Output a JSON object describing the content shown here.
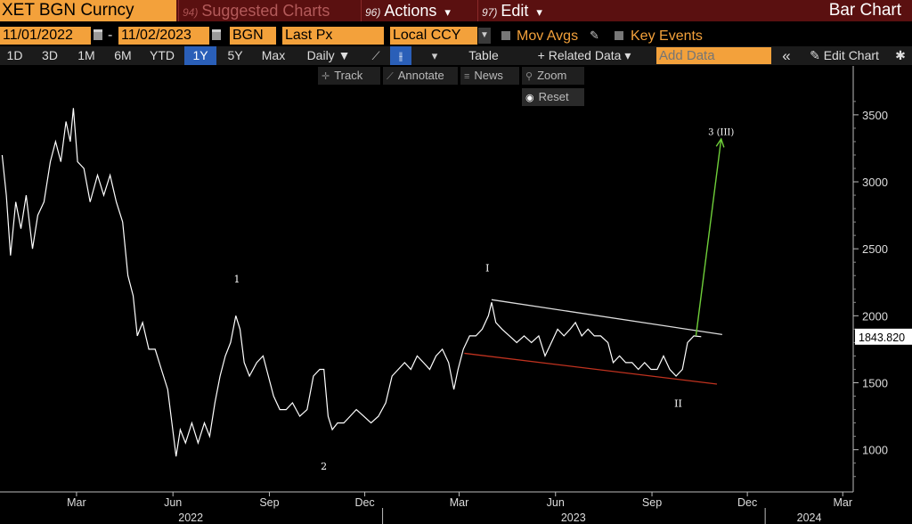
{
  "header": {
    "security": "XET BGN Curncy",
    "menus": [
      {
        "num": "94)",
        "label": "Suggested Charts",
        "dim": true
      },
      {
        "num": "96)",
        "label": "Actions",
        "caret": "▾"
      },
      {
        "num": "97)",
        "label": "Edit",
        "caret": "▾"
      }
    ],
    "chart_type": "Bar Chart"
  },
  "params": {
    "start_date": "11/01/2022",
    "end_date": "11/02/2023",
    "dash": "-",
    "source": "BGN",
    "field": "Last Px",
    "currency": "Local CCY",
    "mov_avgs_label": "Mov Avgs",
    "key_events_label": "Key Events"
  },
  "toolbar": {
    "ranges": [
      "1D",
      "3D",
      "1M",
      "6M",
      "YTD",
      "1Y",
      "5Y",
      "Max"
    ],
    "active_range": "1Y",
    "frequency": "Daily ▼",
    "table_label": "Table",
    "related_data_label": "+ Related Data ▾",
    "add_data_placeholder": "Add Data",
    "collapse_glyph": "«",
    "edit_chart_label": "Edit Chart",
    "settings_glyph": "✱"
  },
  "tools": {
    "track": "Track",
    "annotate": "Annotate",
    "news": "News",
    "zoom": "Zoom",
    "reset": "Reset"
  },
  "colors": {
    "accent_orange": "#f3a13b",
    "header_red": "#5a1010",
    "price_line": "#ffffff",
    "upper_trendline": "#dddddd",
    "lower_trendline": "#c0321f",
    "projection_arrow": "#6fcf3a"
  },
  "chart_data": {
    "type": "line",
    "x_ticks": [
      "Mar",
      "Jun",
      "Sep",
      "Dec",
      "Mar",
      "Jun",
      "Sep",
      "Dec",
      "Mar"
    ],
    "x_years": [
      "2022",
      "2023",
      "2024"
    ],
    "y_ticks": [
      1000,
      1500,
      2000,
      2500,
      3000,
      3500
    ],
    "ylim": [
      700,
      3700
    ],
    "last_price_label": "1843.820",
    "series": [
      {
        "values": [
          [
            "2022-01-03",
            3200
          ],
          [
            "2022-01-07",
            2900
          ],
          [
            "2022-01-11",
            2450
          ],
          [
            "2022-01-16",
            2850
          ],
          [
            "2022-01-21",
            2650
          ],
          [
            "2022-01-26",
            2900
          ],
          [
            "2022-02-01",
            2500
          ],
          [
            "2022-02-06",
            2750
          ],
          [
            "2022-02-12",
            2850
          ],
          [
            "2022-02-18",
            3150
          ],
          [
            "2022-02-23",
            3300
          ],
          [
            "2022-02-28",
            3150
          ],
          [
            "2022-03-05",
            3450
          ],
          [
            "2022-03-09",
            3300
          ],
          [
            "2022-03-12",
            3550
          ],
          [
            "2022-03-16",
            3150
          ],
          [
            "2022-03-22",
            3100
          ],
          [
            "2022-03-28",
            2850
          ],
          [
            "2022-04-04",
            3050
          ],
          [
            "2022-04-10",
            2900
          ],
          [
            "2022-04-16",
            3050
          ],
          [
            "2022-04-22",
            2850
          ],
          [
            "2022-04-28",
            2700
          ],
          [
            "2022-05-03",
            2300
          ],
          [
            "2022-05-08",
            2150
          ],
          [
            "2022-05-12",
            1850
          ],
          [
            "2022-05-17",
            1950
          ],
          [
            "2022-05-23",
            1750
          ],
          [
            "2022-05-29",
            1750
          ],
          [
            "2022-06-04",
            1600
          ],
          [
            "2022-06-10",
            1450
          ],
          [
            "2022-06-14",
            1200
          ],
          [
            "2022-06-18",
            950
          ],
          [
            "2022-06-22",
            1150
          ],
          [
            "2022-06-27",
            1050
          ],
          [
            "2022-07-03",
            1200
          ],
          [
            "2022-07-09",
            1050
          ],
          [
            "2022-07-15",
            1200
          ],
          [
            "2022-07-20",
            1100
          ],
          [
            "2022-07-25",
            1350
          ],
          [
            "2022-07-30",
            1550
          ],
          [
            "2022-08-04",
            1700
          ],
          [
            "2022-08-09",
            1800
          ],
          [
            "2022-08-14",
            2000
          ],
          [
            "2022-08-18",
            1900
          ],
          [
            "2022-08-22",
            1650
          ],
          [
            "2022-08-27",
            1550
          ],
          [
            "2022-09-03",
            1650
          ],
          [
            "2022-09-09",
            1700
          ],
          [
            "2022-09-14",
            1550
          ],
          [
            "2022-09-19",
            1400
          ],
          [
            "2022-09-25",
            1300
          ],
          [
            "2022-10-01",
            1300
          ],
          [
            "2022-10-07",
            1350
          ],
          [
            "2022-10-14",
            1250
          ],
          [
            "2022-10-21",
            1300
          ],
          [
            "2022-10-27",
            1550
          ],
          [
            "2022-11-02",
            1600
          ],
          [
            "2022-11-06",
            1600
          ],
          [
            "2022-11-10",
            1250
          ],
          [
            "2022-11-14",
            1150
          ],
          [
            "2022-11-19",
            1200
          ],
          [
            "2022-11-25",
            1200
          ],
          [
            "2022-12-01",
            1250
          ],
          [
            "2022-12-07",
            1300
          ],
          [
            "2022-12-14",
            1250
          ],
          [
            "2022-12-21",
            1200
          ],
          [
            "2022-12-28",
            1250
          ],
          [
            "2023-01-04",
            1350
          ],
          [
            "2023-01-10",
            1550
          ],
          [
            "2023-01-16",
            1600
          ],
          [
            "2023-01-22",
            1650
          ],
          [
            "2023-01-28",
            1600
          ],
          [
            "2023-02-03",
            1700
          ],
          [
            "2023-02-09",
            1650
          ],
          [
            "2023-02-15",
            1600
          ],
          [
            "2023-02-21",
            1700
          ],
          [
            "2023-02-27",
            1750
          ],
          [
            "2023-03-05",
            1650
          ],
          [
            "2023-03-10",
            1450
          ],
          [
            "2023-03-14",
            1600
          ],
          [
            "2023-03-19",
            1750
          ],
          [
            "2023-03-25",
            1850
          ],
          [
            "2023-03-31",
            1850
          ],
          [
            "2023-04-06",
            1900
          ],
          [
            "2023-04-12",
            2000
          ],
          [
            "2023-04-15",
            2100
          ],
          [
            "2023-04-19",
            1950
          ],
          [
            "2023-04-25",
            1900
          ],
          [
            "2023-05-02",
            1850
          ],
          [
            "2023-05-09",
            1800
          ],
          [
            "2023-05-16",
            1850
          ],
          [
            "2023-05-23",
            1800
          ],
          [
            "2023-05-30",
            1850
          ],
          [
            "2023-06-05",
            1700
          ],
          [
            "2023-06-11",
            1800
          ],
          [
            "2023-06-17",
            1900
          ],
          [
            "2023-06-23",
            1850
          ],
          [
            "2023-06-29",
            1900
          ],
          [
            "2023-07-04",
            1950
          ],
          [
            "2023-07-10",
            1850
          ],
          [
            "2023-07-16",
            1900
          ],
          [
            "2023-07-22",
            1850
          ],
          [
            "2023-07-28",
            1850
          ],
          [
            "2023-08-04",
            1800
          ],
          [
            "2023-08-09",
            1650
          ],
          [
            "2023-08-15",
            1700
          ],
          [
            "2023-08-21",
            1650
          ],
          [
            "2023-08-27",
            1650
          ],
          [
            "2023-09-02",
            1600
          ],
          [
            "2023-09-08",
            1650
          ],
          [
            "2023-09-14",
            1600
          ],
          [
            "2023-09-20",
            1600
          ],
          [
            "2023-09-26",
            1700
          ],
          [
            "2023-10-02",
            1600
          ],
          [
            "2023-10-08",
            1550
          ],
          [
            "2023-10-14",
            1600
          ],
          [
            "2023-10-19",
            1800
          ],
          [
            "2023-10-25",
            1850
          ],
          [
            "2023-11-01",
            1844
          ]
        ]
      }
    ],
    "annotations": [
      {
        "label": "1",
        "date": "2022-08-15",
        "value": 2250
      },
      {
        "label": "2",
        "date": "2022-11-06",
        "value": 850
      },
      {
        "label": "I",
        "date": "2023-04-11",
        "value": 2330
      },
      {
        "label": "II",
        "date": "2023-10-10",
        "value": 1320
      },
      {
        "label": "3 (III)",
        "date": "2023-11-20",
        "value": 3350
      }
    ],
    "trendlines": [
      {
        "name": "upper",
        "from": [
          "2023-04-15",
          2120
        ],
        "to": [
          "2023-11-21",
          1860
        ]
      },
      {
        "name": "lower",
        "from": [
          "2023-03-20",
          1720
        ],
        "to": [
          "2023-11-16",
          1490
        ]
      }
    ],
    "projection": {
      "from": [
        "2023-10-27",
        1850
      ],
      "to": [
        "2023-11-20",
        3320
      ]
    }
  }
}
